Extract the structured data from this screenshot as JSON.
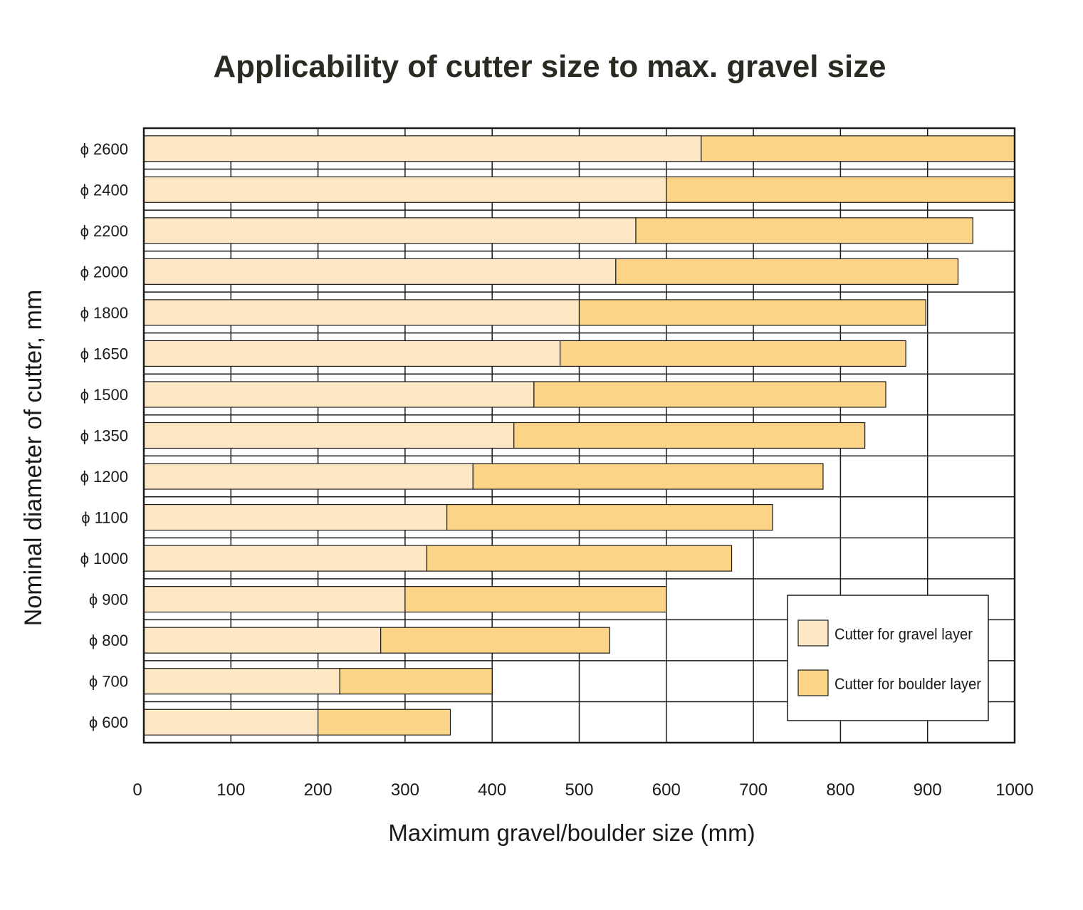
{
  "chart_data": {
    "type": "bar",
    "orientation": "horizontal",
    "stacked": true,
    "title": "Applicability of cutter size to max.  gravel size",
    "xlabel": "Maximum gravel/boulder size (mm)",
    "ylabel": "Nominal diameter of cutter, mm",
    "xlim": [
      0,
      1000
    ],
    "x_ticks": [
      "0",
      "100",
      "200",
      "300",
      "400",
      "500",
      "600",
      "700",
      "800",
      "900",
      "1000"
    ],
    "grid": true,
    "legend_position": "bottom-right",
    "categories": [
      "ϕ 2600",
      "ϕ 2400",
      "ϕ 2200",
      "ϕ 2000",
      "ϕ 1800",
      "ϕ 1650",
      "ϕ 1500",
      "ϕ 1350",
      "ϕ 1200",
      "ϕ 1100",
      "ϕ 1000",
      "ϕ 900",
      "ϕ 800",
      "ϕ 700",
      "ϕ 600"
    ],
    "series": [
      {
        "name": "Cutter for gravel layer",
        "color": "#fde7c4",
        "ranges": [
          [
            0,
            640
          ],
          [
            0,
            600
          ],
          [
            0,
            565
          ],
          [
            0,
            542
          ],
          [
            0,
            500
          ],
          [
            0,
            478
          ],
          [
            0,
            448
          ],
          [
            0,
            425
          ],
          [
            0,
            378
          ],
          [
            0,
            348
          ],
          [
            0,
            325
          ],
          [
            0,
            300
          ],
          [
            0,
            272
          ],
          [
            0,
            225
          ],
          [
            0,
            200
          ]
        ]
      },
      {
        "name": "Cutter for boulder layer",
        "color": "#fbd487",
        "ranges": [
          [
            640,
            1000
          ],
          [
            600,
            1000
          ],
          [
            565,
            952
          ],
          [
            542,
            935
          ],
          [
            500,
            898
          ],
          [
            478,
            875
          ],
          [
            448,
            852
          ],
          [
            425,
            828
          ],
          [
            378,
            780
          ],
          [
            348,
            722
          ],
          [
            325,
            675
          ],
          [
            300,
            600
          ],
          [
            272,
            535
          ],
          [
            225,
            400
          ],
          [
            200,
            352
          ]
        ]
      }
    ]
  },
  "colors": {
    "axis": "#1a1a1a",
    "text": "#1a1a1a",
    "title": "#2a2a22"
  }
}
